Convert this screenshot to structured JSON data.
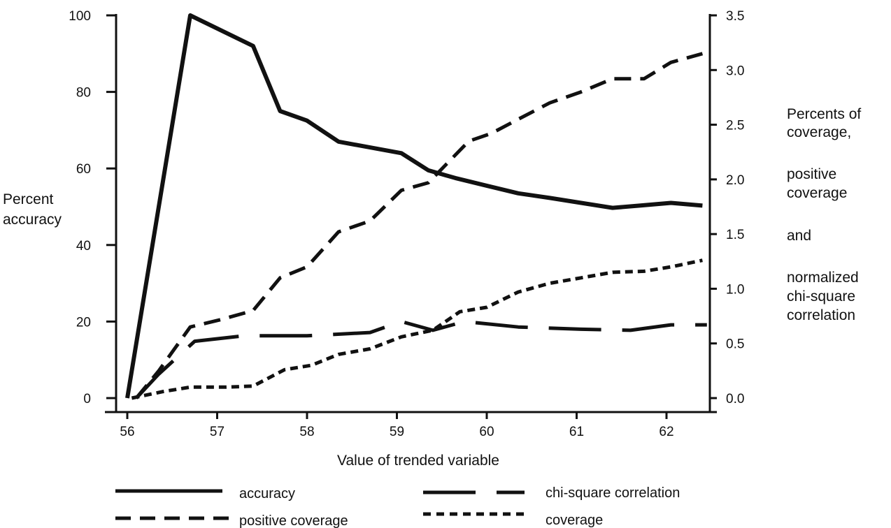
{
  "chart_data": {
    "type": "line",
    "xlabel": "Value of trended variable",
    "ylabel_left": [
      "Percent",
      "accuracy"
    ],
    "ylabel_right": [
      "Percents of",
      "coverage,",
      "positive",
      "coverage",
      "and",
      "normalized",
      "chi-square",
      "correlation"
    ],
    "xlim": [
      56,
      62.55
    ],
    "ylim_left": [
      0,
      100
    ],
    "ylim_right": [
      0,
      3.5
    ],
    "x_ticks": [
      56,
      57,
      58,
      59,
      60,
      61,
      62
    ],
    "y_left_ticks": [
      0,
      20,
      40,
      60,
      80,
      100
    ],
    "y_right_ticks": [
      "0.0",
      "0.5",
      "1.0",
      "1.5",
      "2.0",
      "2.5",
      "3.0",
      "3.5"
    ],
    "grid": false,
    "legend_position": "bottom",
    "series": [
      {
        "name": "accuracy",
        "axis": "left",
        "style": "solid",
        "points": [
          [
            56.0,
            0
          ],
          [
            56.7,
            100
          ],
          [
            57.4,
            92
          ],
          [
            57.7,
            75
          ],
          [
            58.0,
            72.5
          ],
          [
            58.35,
            67
          ],
          [
            58.7,
            65.5
          ],
          [
            59.05,
            64
          ],
          [
            59.35,
            59.5
          ],
          [
            59.65,
            57.5
          ],
          [
            60.0,
            55.5
          ],
          [
            60.35,
            53.5
          ],
          [
            60.7,
            52.3
          ],
          [
            61.05,
            51
          ],
          [
            61.4,
            49.7
          ],
          [
            61.7,
            50.3
          ],
          [
            62.05,
            51
          ],
          [
            62.4,
            50.3
          ]
        ]
      },
      {
        "name": "positive coverage",
        "axis": "right",
        "style": "dashed",
        "points": [
          [
            56.1,
            0.0
          ],
          [
            56.35,
            0.25
          ],
          [
            56.7,
            0.65
          ],
          [
            57.05,
            0.72
          ],
          [
            57.4,
            0.8
          ],
          [
            57.7,
            1.1
          ],
          [
            58.0,
            1.2
          ],
          [
            58.35,
            1.52
          ],
          [
            58.7,
            1.62
          ],
          [
            59.05,
            1.9
          ],
          [
            59.35,
            1.97
          ],
          [
            59.8,
            2.35
          ],
          [
            60.05,
            2.42
          ],
          [
            60.35,
            2.55
          ],
          [
            60.7,
            2.7
          ],
          [
            61.05,
            2.8
          ],
          [
            61.4,
            2.92
          ],
          [
            61.75,
            2.92
          ],
          [
            62.05,
            3.07
          ],
          [
            62.4,
            3.15
          ]
        ]
      },
      {
        "name": "chi-square correlation",
        "axis": "right",
        "style": "longdash",
        "points": [
          [
            56.1,
            0.0
          ],
          [
            56.35,
            0.22
          ],
          [
            56.75,
            0.52
          ],
          [
            57.3,
            0.57
          ],
          [
            58.0,
            0.57
          ],
          [
            58.7,
            0.6
          ],
          [
            59.05,
            0.7
          ],
          [
            59.4,
            0.62
          ],
          [
            59.75,
            0.7
          ],
          [
            60.35,
            0.65
          ],
          [
            61.05,
            0.63
          ],
          [
            61.6,
            0.62
          ],
          [
            62.05,
            0.67
          ],
          [
            62.45,
            0.67
          ]
        ]
      },
      {
        "name": "coverage",
        "axis": "right",
        "style": "dotted",
        "points": [
          [
            56.05,
            0.0
          ],
          [
            56.4,
            0.06
          ],
          [
            56.7,
            0.1
          ],
          [
            57.1,
            0.1
          ],
          [
            57.4,
            0.11
          ],
          [
            57.75,
            0.26
          ],
          [
            58.05,
            0.3
          ],
          [
            58.35,
            0.4
          ],
          [
            58.7,
            0.45
          ],
          [
            59.05,
            0.56
          ],
          [
            59.4,
            0.62
          ],
          [
            59.7,
            0.79
          ],
          [
            60.0,
            0.83
          ],
          [
            60.35,
            0.97
          ],
          [
            60.7,
            1.05
          ],
          [
            61.05,
            1.1
          ],
          [
            61.4,
            1.15
          ],
          [
            61.75,
            1.16
          ],
          [
            62.05,
            1.2
          ],
          [
            62.4,
            1.26
          ]
        ]
      }
    ]
  }
}
